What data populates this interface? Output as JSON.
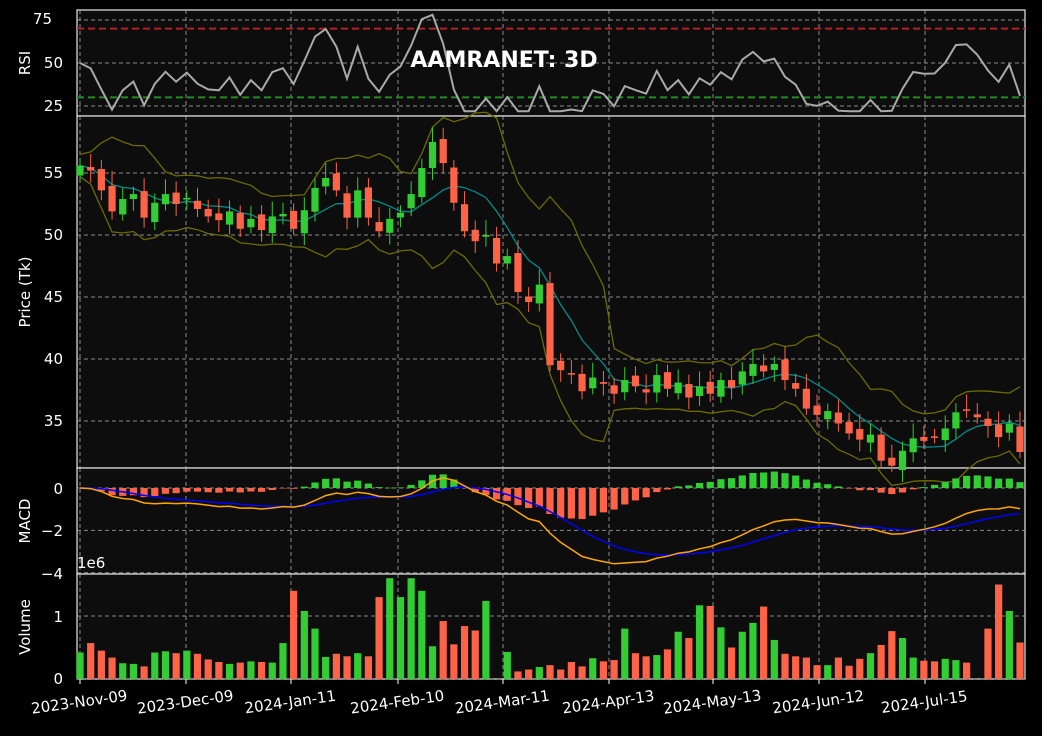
{
  "title": "AAMRANET: 3D",
  "colors": {
    "up": "#32cd32",
    "down": "#ff6347",
    "rsi": "#a9a9a9",
    "ma": "#008b8b",
    "bands": "#6b6b00",
    "macd": "#ffa500",
    "signal": "#0000ff",
    "ob": "#b22222",
    "os": "#228b22",
    "bg": "#0d0d0d"
  },
  "x_tick_labels": [
    "2023-Nov-09",
    "2023-Dec-09",
    "2024-Jan-11",
    "2024-Feb-10",
    "2024-Mar-11",
    "2024-Apr-13",
    "2024-May-13",
    "2024-Jun-12",
    "2024-Jul-15"
  ],
  "panels": {
    "rsi": {
      "ylabel": "RSI",
      "yticks": [
        "25",
        "50",
        "75"
      ]
    },
    "price": {
      "ylabel": "Price (Tk)",
      "yticks": [
        "35",
        "40",
        "45",
        "50",
        "55"
      ]
    },
    "macd": {
      "ylabel": "MACD",
      "yticks": [
        "−4",
        "−2",
        "0"
      ],
      "offset_label": "1e6"
    },
    "volume": {
      "ylabel": "Volume",
      "yticks": [
        "0",
        "1"
      ]
    }
  },
  "chart_data": {
    "type": "candlestick",
    "title": "AAMRANET: 3D",
    "x_tick_labels": [
      "2023-Nov-09",
      "2023-Dec-09",
      "2024-Jan-11",
      "2024-Feb-10",
      "2024-Mar-11",
      "2024-Apr-13",
      "2024-May-13",
      "2024-Jun-12",
      "2024-Jul-15"
    ],
    "n_candles": 89,
    "close": [
      55.6,
      55.2,
      53.6,
      51.9,
      52.9,
      53.3,
      51.4,
      52.6,
      53.3,
      52.5,
      53.0,
      52.1,
      51.5,
      51.2,
      51.9,
      50.5,
      51.3,
      50.4,
      51.5,
      51.7,
      50.5,
      52.0,
      53.8,
      54.6,
      53.6,
      51.4,
      53.6,
      51.4,
      50.3,
      51.3,
      51.8,
      53.3,
      55.4,
      57.5,
      55.8,
      52.6,
      50.3,
      49.5,
      50.0,
      47.7,
      48.3,
      45.4,
      44.6,
      46.0,
      39.5,
      39.1,
      38.8,
      37.4,
      38.5,
      38.0,
      37.2,
      38.3,
      37.8,
      37.3,
      38.7,
      37.6,
      38.1,
      36.9,
      37.8,
      37.2,
      38.3,
      37.7,
      39.0,
      39.6,
      39.0,
      39.6,
      38.3,
      37.6,
      36.0,
      35.5,
      35.8,
      34.8,
      34.0,
      33.5,
      33.9,
      31.8,
      31.4,
      32.6,
      33.6,
      33.4,
      33.7,
      34.4,
      35.7,
      35.9,
      35.3,
      34.6,
      33.7,
      34.8,
      32.5
    ],
    "volume_millions": [
      0.42,
      0.57,
      0.45,
      0.34,
      0.25,
      0.24,
      0.2,
      0.42,
      0.44,
      0.41,
      0.45,
      0.4,
      0.31,
      0.27,
      0.24,
      0.26,
      0.28,
      0.27,
      0.26,
      0.57,
      1.4,
      1.08,
      0.8,
      0.35,
      0.4,
      0.36,
      0.41,
      0.36,
      1.3,
      1.6,
      1.3,
      1.6,
      1.4,
      0.52,
      0.92,
      0.55,
      0.84,
      0.77,
      1.24,
      0.0,
      0.43,
      0.12,
      0.15,
      0.19,
      0.22,
      0.15,
      0.27,
      0.2,
      0.33,
      0.28,
      0.3,
      0.8,
      0.41,
      0.36,
      0.38,
      0.47,
      0.75,
      0.65,
      1.17,
      1.16,
      0.82,
      0.5,
      0.75,
      0.89,
      1.15,
      0.62,
      0.4,
      0.36,
      0.34,
      0.22,
      0.22,
      0.34,
      0.21,
      0.32,
      0.41,
      0.54,
      0.76,
      0.65,
      0.34,
      0.29,
      0.28,
      0.32,
      0.3,
      0.26,
      0.0,
      0.8,
      1.5,
      1.08,
      0.58
    ],
    "rsi_levels": {
      "overbought": 70,
      "oversold": 30
    },
    "ylim_price": [
      31.2,
      60.1
    ],
    "ylim_rsi": [
      20,
      80
    ],
    "ylim_macd_1e6": [
      -4,
      0.8
    ],
    "ylim_volume_1e6": [
      0,
      1.6
    ]
  }
}
